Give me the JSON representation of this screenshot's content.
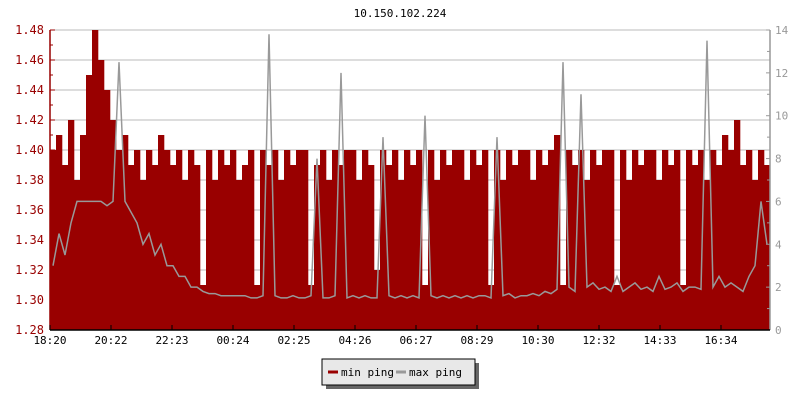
{
  "chart_data": {
    "type": "bar",
    "title": "10.150.102.224",
    "x_ticks": [
      "18:20",
      "20:22",
      "22:23",
      "00:24",
      "02:25",
      "04:26",
      "06:27",
      "08:29",
      "10:30",
      "12:32",
      "14:33",
      "16:34"
    ],
    "y_left": {
      "ylim": [
        1.28,
        1.48
      ],
      "ticks": [
        "1.28",
        "1.30",
        "1.32",
        "1.34",
        "1.36",
        "1.38",
        "1.40",
        "1.42",
        "1.44",
        "1.46",
        "1.48"
      ]
    },
    "y_right": {
      "ylim": [
        0,
        14
      ],
      "ticks": [
        "0",
        "2",
        "4",
        "6",
        "8",
        "10",
        "12",
        "14"
      ]
    },
    "grid": true,
    "legend_placement": "bottom-center",
    "series": [
      {
        "name": "min ping",
        "axis": "left",
        "style": "bar",
        "color": "#990000",
        "values": [
          1.4,
          1.41,
          1.39,
          1.42,
          1.38,
          1.41,
          1.45,
          1.48,
          1.46,
          1.44,
          1.42,
          1.4,
          1.41,
          1.39,
          1.4,
          1.38,
          1.4,
          1.39,
          1.41,
          1.4,
          1.39,
          1.4,
          1.38,
          1.4,
          1.39,
          1.31,
          1.4,
          1.38,
          1.4,
          1.39,
          1.4,
          1.38,
          1.39,
          1.4,
          1.31,
          1.4,
          1.39,
          1.4,
          1.38,
          1.4,
          1.39,
          1.4,
          1.4,
          1.31,
          1.39,
          1.4,
          1.38,
          1.4,
          1.39,
          1.4,
          1.4,
          1.38,
          1.4,
          1.39,
          1.32,
          1.4,
          1.39,
          1.4,
          1.38,
          1.4,
          1.39,
          1.4,
          1.31,
          1.4,
          1.38,
          1.4,
          1.39,
          1.4,
          1.4,
          1.38,
          1.4,
          1.39,
          1.4,
          1.31,
          1.4,
          1.38,
          1.4,
          1.39,
          1.4,
          1.4,
          1.38,
          1.4,
          1.39,
          1.4,
          1.41,
          1.31,
          1.4,
          1.39,
          1.4,
          1.38,
          1.4,
          1.39,
          1.4,
          1.4,
          1.31,
          1.4,
          1.38,
          1.4,
          1.39,
          1.4,
          1.4,
          1.38,
          1.4,
          1.39,
          1.4,
          1.31,
          1.4,
          1.39,
          1.4,
          1.38,
          1.4,
          1.39,
          1.41,
          1.4,
          1.42,
          1.39,
          1.4,
          1.38,
          1.4,
          1.39
        ]
      },
      {
        "name": "max ping",
        "axis": "right",
        "style": "line",
        "color": "#999999",
        "values": [
          3,
          4.5,
          3.5,
          5,
          6,
          6,
          6,
          6,
          6,
          5.8,
          6,
          12.5,
          6,
          5.5,
          5,
          4,
          4.5,
          3.5,
          4,
          3,
          3,
          2.5,
          2.5,
          2,
          2,
          1.8,
          1.7,
          1.7,
          1.6,
          1.6,
          1.6,
          1.6,
          1.6,
          1.5,
          1.5,
          1.6,
          13.8,
          1.6,
          1.5,
          1.5,
          1.6,
          1.5,
          1.5,
          1.6,
          8,
          1.5,
          1.5,
          1.6,
          12,
          1.5,
          1.6,
          1.5,
          1.6,
          1.5,
          1.5,
          9,
          1.6,
          1.5,
          1.6,
          1.5,
          1.6,
          1.5,
          10,
          1.6,
          1.5,
          1.6,
          1.5,
          1.6,
          1.5,
          1.6,
          1.5,
          1.6,
          1.6,
          1.5,
          9,
          1.6,
          1.7,
          1.5,
          1.6,
          1.6,
          1.7,
          1.6,
          1.8,
          1.7,
          1.9,
          12.5,
          2,
          1.8,
          11,
          2,
          2.2,
          1.9,
          2,
          1.8,
          2.5,
          1.8,
          2,
          2.2,
          1.9,
          2,
          1.8,
          2.5,
          1.9,
          2,
          2.2,
          1.8,
          2,
          2,
          1.9,
          13.5,
          2,
          2.5,
          2,
          2.2,
          2,
          1.8,
          2.5,
          3,
          6,
          4
        ]
      }
    ]
  }
}
